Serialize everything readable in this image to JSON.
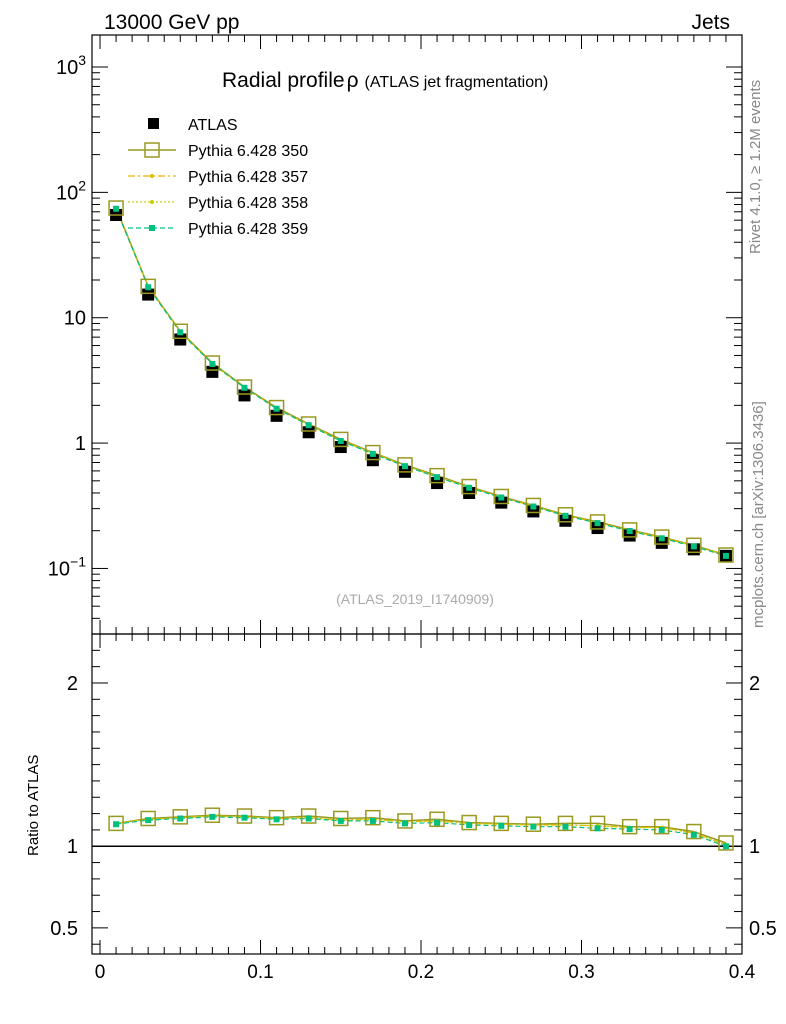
{
  "header": {
    "left": "13000 GeV pp",
    "right": "Jets"
  },
  "side_labels": {
    "rivet": "Rivet 4.1.0, ≥ 1.2M events",
    "mcplots": "mcplots.cern.ch [arXiv:1306.3436]"
  },
  "chart_data": [
    {
      "panel": "main",
      "type": "scatter",
      "title": "Radial profile",
      "title_symbol": "ρ",
      "subtitle": "(ATLAS jet fragmentation)",
      "watermark": "(ATLAS_2019_I1740909)",
      "yscale": "log",
      "ylim": [
        0.03,
        1800
      ],
      "xlim": [
        -0.005,
        0.4
      ],
      "y_ticks": [
        {
          "value": 1000,
          "base": "10",
          "exp": "3"
        },
        {
          "value": 100,
          "base": "10",
          "exp": "2"
        },
        {
          "value": 10,
          "base": "10",
          "exp": ""
        },
        {
          "value": 1,
          "base": "1",
          "exp": ""
        },
        {
          "value": 0.1,
          "base": "10",
          "exp": "−1"
        }
      ],
      "x": [
        0.01,
        0.03,
        0.05,
        0.07,
        0.09,
        0.11,
        0.13,
        0.15,
        0.17,
        0.19,
        0.21,
        0.23,
        0.25,
        0.27,
        0.29,
        0.31,
        0.33,
        0.35,
        0.37,
        0.39
      ],
      "series": [
        {
          "name": "ATLAS",
          "color": "#000000",
          "values": [
            66,
            15.3,
            6.7,
            3.7,
            2.4,
            1.65,
            1.22,
            0.93,
            0.73,
            0.59,
            0.48,
            0.4,
            0.335,
            0.285,
            0.24,
            0.21,
            0.183,
            0.16,
            0.142,
            0.126
          ]
        },
        {
          "name": "Pythia 6.428 350",
          "color": "#999920",
          "values": [
            75,
            17.8,
            7.8,
            4.35,
            2.8,
            1.92,
            1.42,
            1.07,
            0.84,
            0.67,
            0.55,
            0.45,
            0.375,
            0.318,
            0.268,
            0.235,
            0.203,
            0.178,
            0.153,
            0.128
          ]
        },
        {
          "name": "Pythia 6.428 357",
          "color": "#e6b800",
          "values": [
            74,
            17.6,
            7.7,
            4.3,
            2.77,
            1.89,
            1.4,
            1.05,
            0.83,
            0.66,
            0.54,
            0.445,
            0.37,
            0.314,
            0.265,
            0.232,
            0.2,
            0.176,
            0.152,
            0.127
          ]
        },
        {
          "name": "Pythia 6.428 358",
          "color": "#cccc00",
          "values": [
            74,
            17.6,
            7.7,
            4.3,
            2.77,
            1.89,
            1.4,
            1.05,
            0.83,
            0.66,
            0.54,
            0.445,
            0.37,
            0.314,
            0.265,
            0.232,
            0.2,
            0.176,
            0.152,
            0.127
          ]
        },
        {
          "name": "Pythia 6.428 359",
          "color": "#00c080",
          "values": [
            74,
            17.5,
            7.65,
            4.28,
            2.76,
            1.88,
            1.39,
            1.04,
            0.82,
            0.655,
            0.535,
            0.44,
            0.368,
            0.312,
            0.263,
            0.23,
            0.199,
            0.174,
            0.15,
            0.126
          ]
        }
      ]
    },
    {
      "panel": "ratio",
      "type": "line",
      "ylabel": "Ratio to ATLAS",
      "ylim": [
        0.34,
        2.3
      ],
      "xlim": [
        -0.005,
        0.4
      ],
      "y_ticks": [
        {
          "value": 0.5,
          "label": "0.5"
        },
        {
          "value": 1,
          "label": "1"
        },
        {
          "value": 2,
          "label": "2"
        }
      ],
      "x_ticks": [
        {
          "value": 0,
          "label": "0"
        },
        {
          "value": 0.1,
          "label": "0.1"
        },
        {
          "value": 0.2,
          "label": "0.2"
        },
        {
          "value": 0.3,
          "label": "0.3"
        },
        {
          "value": 0.4,
          "label": "0.4"
        }
      ],
      "x": [
        0.01,
        0.03,
        0.05,
        0.07,
        0.09,
        0.11,
        0.13,
        0.15,
        0.17,
        0.19,
        0.21,
        0.23,
        0.25,
        0.27,
        0.29,
        0.31,
        0.33,
        0.35,
        0.37,
        0.39
      ],
      "series": [
        {
          "name": "Pythia 6.428 350",
          "color": "#999920",
          "values": [
            1.14,
            1.17,
            1.18,
            1.19,
            1.185,
            1.175,
            1.185,
            1.17,
            1.175,
            1.155,
            1.165,
            1.145,
            1.14,
            1.135,
            1.14,
            1.14,
            1.12,
            1.12,
            1.09,
            1.02
          ]
        },
        {
          "name": "Pythia 6.428 357",
          "color": "#e6b800",
          "values": [
            1.14,
            1.165,
            1.175,
            1.185,
            1.18,
            1.17,
            1.175,
            1.16,
            1.165,
            1.15,
            1.155,
            1.14,
            1.135,
            1.13,
            1.13,
            1.125,
            1.115,
            1.115,
            1.08,
            1.01
          ]
        },
        {
          "name": "Pythia 6.428 358",
          "color": "#cccc00",
          "values": [
            1.14,
            1.165,
            1.175,
            1.185,
            1.18,
            1.17,
            1.175,
            1.16,
            1.165,
            1.15,
            1.155,
            1.14,
            1.135,
            1.13,
            1.13,
            1.125,
            1.115,
            1.115,
            1.08,
            1.01
          ]
        },
        {
          "name": "Pythia 6.428 359",
          "color": "#00c080",
          "values": [
            1.135,
            1.16,
            1.17,
            1.18,
            1.175,
            1.165,
            1.17,
            1.155,
            1.155,
            1.14,
            1.145,
            1.13,
            1.125,
            1.12,
            1.12,
            1.11,
            1.105,
            1.1,
            1.07,
            1.0
          ]
        }
      ]
    }
  ]
}
